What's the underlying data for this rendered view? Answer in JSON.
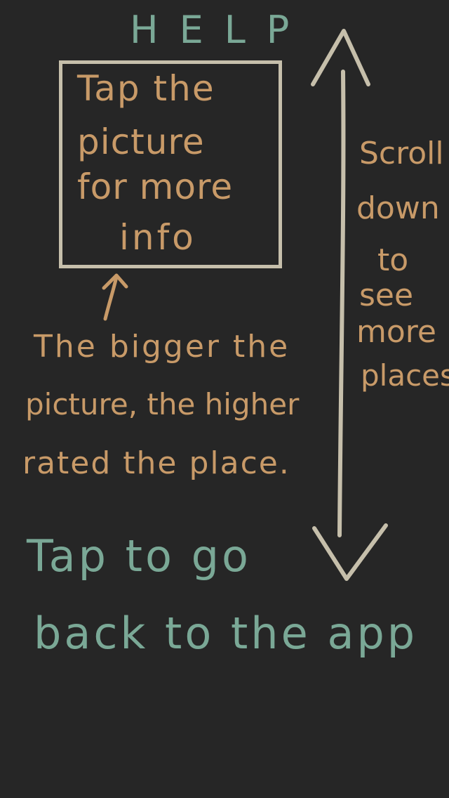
{
  "header": {
    "title": "HELP"
  },
  "picture_tip": {
    "lines": [
      "Tap the",
      "picture",
      "for more",
      "info"
    ]
  },
  "size_tip": {
    "lines": [
      "The bigger the",
      "picture, the higher",
      "rated the place."
    ]
  },
  "scroll_tip": {
    "lines": [
      "Scroll",
      "down",
      "to",
      "see",
      "more",
      "places"
    ]
  },
  "back_action": {
    "lines": [
      "Tap to go",
      "back to the app"
    ]
  },
  "colors": {
    "background": "#262626",
    "teal": "#7aa896",
    "tan": "#c89a68",
    "line": "#c6bfab"
  }
}
